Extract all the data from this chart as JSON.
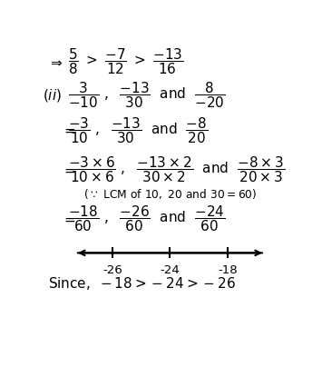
{
  "bg_color": "#ffffff",
  "figsize": [
    3.55,
    4.26
  ],
  "dpi": 100,
  "xlim": [
    0,
    10
  ],
  "ylim": [
    0,
    14
  ],
  "fs": 11.0,
  "nl_y": 4.3,
  "nl_x0": 1.4,
  "nl_x1": 9.0,
  "tick_vals": [
    -26,
    -24,
    -18
  ],
  "tick_xpos": [
    2.9,
    5.2,
    7.5
  ]
}
